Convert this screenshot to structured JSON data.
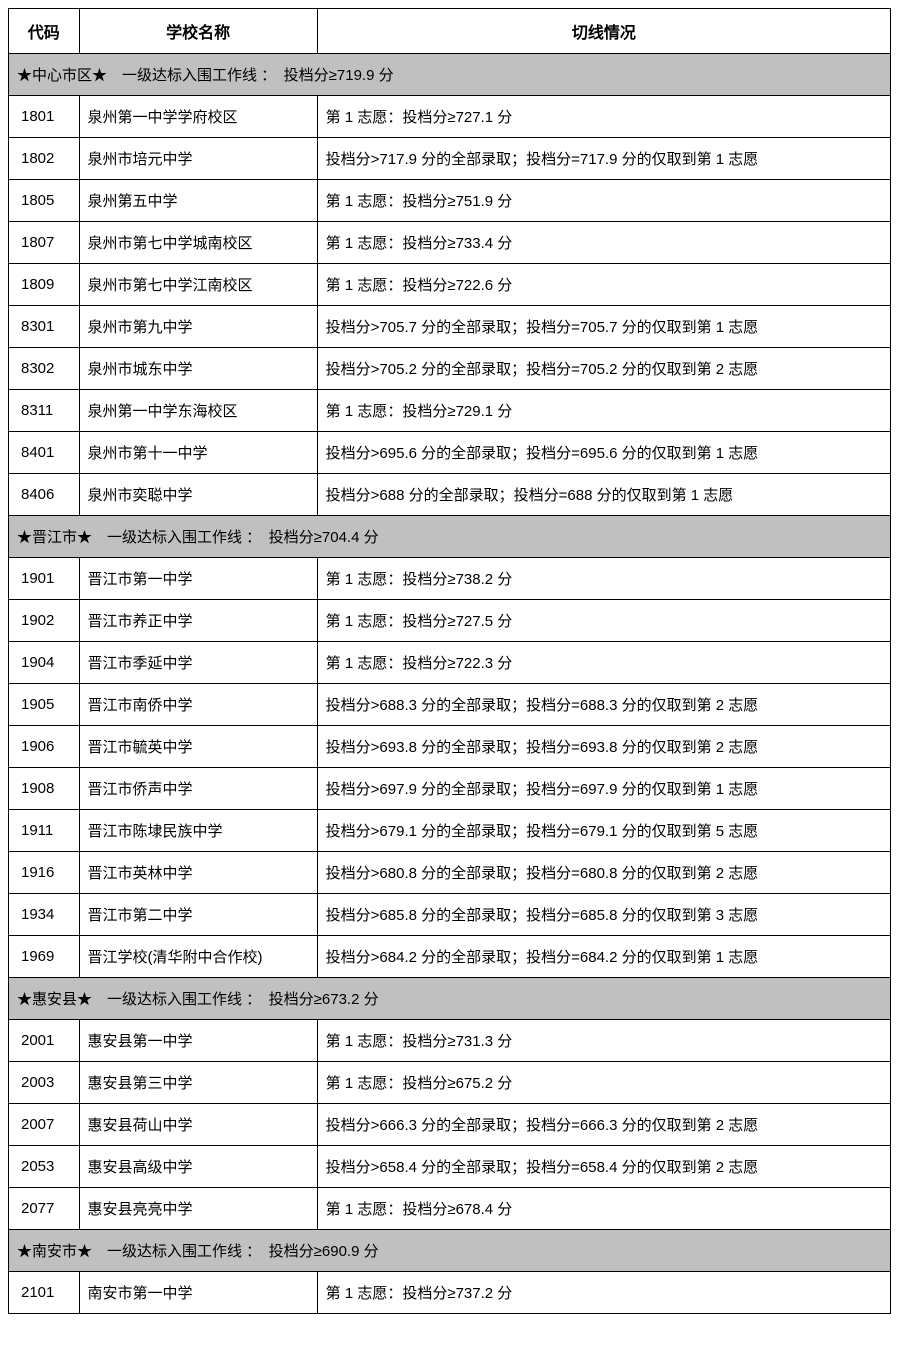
{
  "headers": {
    "code": "代码",
    "school": "学校名称",
    "cutoff": "切线情况"
  },
  "sections": [
    {
      "title": "★中心市区★　一级达标入围工作线 ：　投档分≥719.9 分",
      "rows": [
        {
          "code": "1801",
          "name": "泉州第一中学学府校区",
          "cutoff": "第 1 志愿：投档分≥727.1 分"
        },
        {
          "code": "1802",
          "name": "泉州市培元中学",
          "cutoff": "投档分>717.9 分的全部录取；投档分=717.9 分的仅取到第 1 志愿"
        },
        {
          "code": "1805",
          "name": "泉州第五中学",
          "cutoff": "第 1 志愿：投档分≥751.9 分"
        },
        {
          "code": "1807",
          "name": "泉州市第七中学城南校区",
          "cutoff": "第 1 志愿：投档分≥733.4 分"
        },
        {
          "code": "1809",
          "name": "泉州市第七中学江南校区",
          "cutoff": "第 1 志愿：投档分≥722.6 分"
        },
        {
          "code": "8301",
          "name": "泉州市第九中学",
          "cutoff": "投档分>705.7 分的全部录取；投档分=705.7 分的仅取到第 1 志愿"
        },
        {
          "code": "8302",
          "name": "泉州市城东中学",
          "cutoff": "投档分>705.2 分的全部录取；投档分=705.2 分的仅取到第 2 志愿"
        },
        {
          "code": "8311",
          "name": "泉州第一中学东海校区",
          "cutoff": "第 1 志愿：投档分≥729.1 分"
        },
        {
          "code": "8401",
          "name": "泉州市第十一中学",
          "cutoff": "投档分>695.6 分的全部录取；投档分=695.6 分的仅取到第 1 志愿"
        },
        {
          "code": "8406",
          "name": "泉州市奕聪中学",
          "cutoff": "投档分>688 分的全部录取；投档分=688 分的仅取到第 1 志愿"
        }
      ]
    },
    {
      "title": "★晋江市★　一级达标入围工作线 ：　投档分≥704.4 分",
      "rows": [
        {
          "code": "1901",
          "name": "晋江市第一中学",
          "cutoff": "第 1 志愿：投档分≥738.2 分"
        },
        {
          "code": "1902",
          "name": "晋江市养正中学",
          "cutoff": "第 1 志愿：投档分≥727.5 分"
        },
        {
          "code": "1904",
          "name": "晋江市季延中学",
          "cutoff": "第 1 志愿：投档分≥722.3 分"
        },
        {
          "code": "1905",
          "name": "晋江市南侨中学",
          "cutoff": "投档分>688.3 分的全部录取；投档分=688.3 分的仅取到第 2 志愿"
        },
        {
          "code": "1906",
          "name": "晋江市毓英中学",
          "cutoff": "投档分>693.8 分的全部录取；投档分=693.8 分的仅取到第 2 志愿"
        },
        {
          "code": "1908",
          "name": "晋江市侨声中学",
          "cutoff": "投档分>697.9 分的全部录取；投档分=697.9 分的仅取到第 1 志愿"
        },
        {
          "code": "1911",
          "name": "晋江市陈埭民族中学",
          "cutoff": "投档分>679.1 分的全部录取；投档分=679.1 分的仅取到第 5 志愿"
        },
        {
          "code": "1916",
          "name": "晋江市英林中学",
          "cutoff": "投档分>680.8 分的全部录取；投档分=680.8 分的仅取到第 2 志愿"
        },
        {
          "code": "1934",
          "name": "晋江市第二中学",
          "cutoff": "投档分>685.8 分的全部录取；投档分=685.8 分的仅取到第 3 志愿"
        },
        {
          "code": "1969",
          "name": "晋江学校(清华附中合作校)",
          "cutoff": "投档分>684.2 分的全部录取；投档分=684.2 分的仅取到第 1 志愿"
        }
      ]
    },
    {
      "title": "★惠安县★　一级达标入围工作线 ：　投档分≥673.2 分",
      "rows": [
        {
          "code": "2001",
          "name": "惠安县第一中学",
          "cutoff": "第 1 志愿：投档分≥731.3 分"
        },
        {
          "code": "2003",
          "name": "惠安县第三中学",
          "cutoff": "第 1 志愿：投档分≥675.2 分"
        },
        {
          "code": "2007",
          "name": "惠安县荷山中学",
          "cutoff": "投档分>666.3 分的全部录取；投档分=666.3 分的仅取到第 2 志愿"
        },
        {
          "code": "2053",
          "name": "惠安县高级中学",
          "cutoff": "投档分>658.4 分的全部录取；投档分=658.4 分的仅取到第 2 志愿"
        },
        {
          "code": "2077",
          "name": "惠安县亮亮中学",
          "cutoff": "第 1 志愿：投档分≥678.4 分"
        }
      ]
    },
    {
      "title": "★南安市★　一级达标入围工作线 ：　投档分≥690.9 分",
      "rows": [
        {
          "code": "2101",
          "name": "南安市第一中学",
          "cutoff": "第 1 志愿：投档分≥737.2 分"
        }
      ]
    }
  ]
}
